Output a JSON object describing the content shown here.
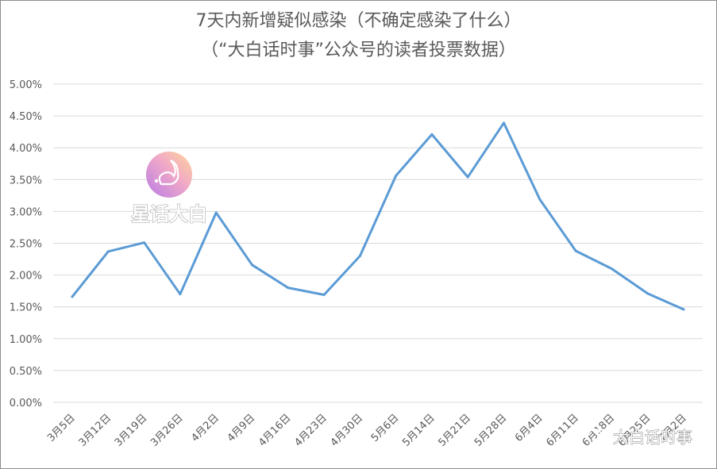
{
  "chart_data": {
    "type": "line",
    "title": "7天内新增疑似感染（不确定感染了什么）",
    "subtitle": "（“大白话时事”公众号的读者投票数据）",
    "categories": [
      "3月5日",
      "3月12日",
      "3月19日",
      "3月26日",
      "4月2日",
      "4月9日",
      "4月16日",
      "4月23日",
      "4月30日",
      "5月6日",
      "5月14日",
      "5月21日",
      "5月28日",
      "6月4日",
      "6月11日",
      "6月18日",
      "6月25日",
      "7月2日"
    ],
    "series": [
      {
        "values": [
          1.66,
          2.37,
          2.51,
          1.7,
          2.98,
          2.16,
          1.8,
          1.69,
          2.3,
          3.56,
          4.21,
          3.54,
          4.39,
          3.19,
          2.38,
          2.1,
          1.71,
          1.46
        ]
      }
    ],
    "y_ticks": [
      "0.00%",
      "0.50%",
      "1.00%",
      "1.50%",
      "2.00%",
      "2.50%",
      "3.00%",
      "3.50%",
      "4.00%",
      "4.50%",
      "5.00%"
    ],
    "ylim": [
      0,
      5
    ],
    "grid": true,
    "line_color": "#5b9bd5"
  },
  "watermarks": {
    "center_text": "星话大白",
    "corner_text": "大白话时事"
  }
}
